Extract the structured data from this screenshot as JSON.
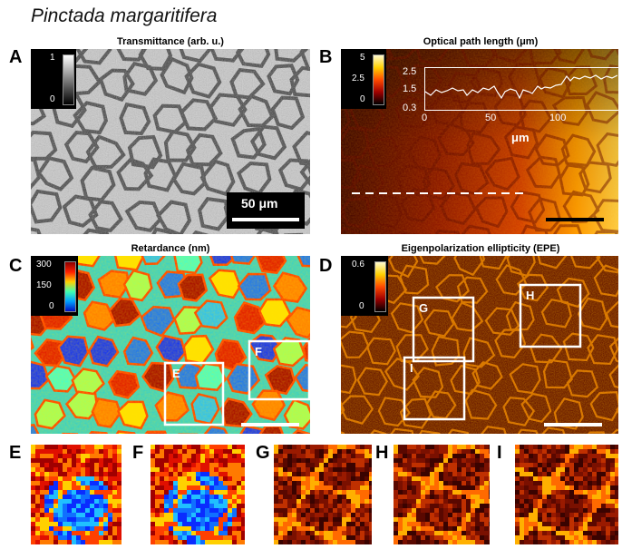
{
  "figure": {
    "species": "Pinctada margaritifera"
  },
  "panels": {
    "A": {
      "letter": "A",
      "title": "Transmittance (arb. u.)",
      "colorbar": {
        "max": "1",
        "min": "0",
        "colormap": "gray"
      },
      "scalebar_label": "50 μm"
    },
    "B": {
      "letter": "B",
      "title": "Optical path length (μm)",
      "colorbar": {
        "max": "5",
        "mid": "2.5",
        "min": "0",
        "colormap": "hot"
      },
      "inset": {
        "y_ticks": [
          "2.5",
          "1.5",
          "0.3"
        ],
        "x_ticks": [
          "0",
          "50",
          "100"
        ],
        "xlabel": "μm"
      }
    },
    "C": {
      "letter": "C",
      "title": "Retardance (nm)",
      "colorbar": {
        "max": "300",
        "mid": "150",
        "min": "0",
        "colormap": "jet"
      },
      "roi_labels": [
        "E",
        "F"
      ]
    },
    "D": {
      "letter": "D",
      "title": "Eigenpolarization ellipticity (EPE)",
      "colorbar": {
        "max": "0.6",
        "min": "0",
        "colormap": "hot"
      },
      "roi_labels": [
        "G",
        "H",
        "I"
      ]
    },
    "zooms": [
      {
        "letter": "E",
        "colormap": "jet"
      },
      {
        "letter": "F",
        "colormap": "jet"
      },
      {
        "letter": "G",
        "colormap": "hot"
      },
      {
        "letter": "H",
        "colormap": "hot"
      },
      {
        "letter": "I",
        "colormap": "hot"
      }
    ]
  },
  "colors": {
    "background": "#ffffff",
    "roi_box": "#ffffff",
    "dark_hot": "#3a0500",
    "bright_hot": "#ffd000",
    "jet_low": "#0a2cff",
    "jet_high": "#b00000"
  }
}
